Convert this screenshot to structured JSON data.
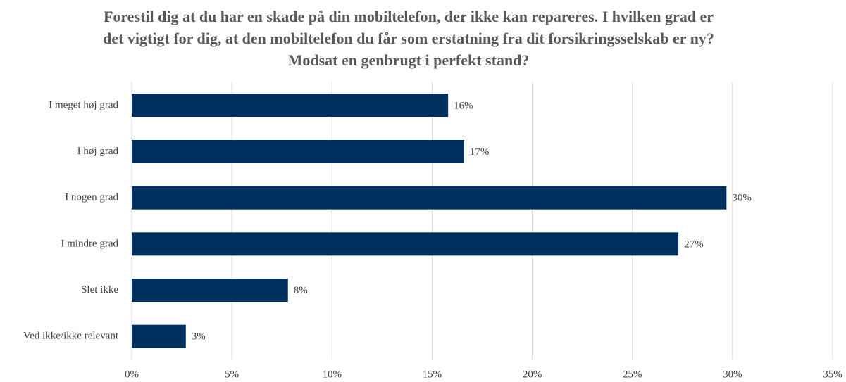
{
  "chart_data": {
    "type": "bar",
    "orientation": "horizontal",
    "title": "Forestil dig at du har en skade på din mobiltelefon, der ikke kan repareres. I hvilken grad er det vigtigt for dig, at den mobiltelefon du får som erstatning fra dit forsikringsselskab er ny? Modsat en genbrugt i perfekt stand?",
    "categories": [
      "I meget høj grad",
      "I høj grad",
      "I nogen grad",
      "I mindre grad",
      "Slet ikke",
      "Ved ikke/ikke relevant"
    ],
    "values": [
      15.8,
      16.6,
      29.7,
      27.3,
      7.8,
      2.7
    ],
    "value_labels": [
      "16%",
      "17%",
      "30%",
      "27%",
      "8%",
      "3%"
    ],
    "color": "#00305e",
    "xlim": [
      0,
      35
    ],
    "xticks": [
      {
        "value": 0,
        "label": "0%"
      },
      {
        "value": 5,
        "label": "5%"
      },
      {
        "value": 10,
        "label": "10%"
      },
      {
        "value": 15,
        "label": "15%"
      },
      {
        "value": 20,
        "label": "20%"
      },
      {
        "value": 25,
        "label": "25%"
      },
      {
        "value": 30,
        "label": "30%"
      },
      {
        "value": 35,
        "label": "35%"
      }
    ],
    "grid": true
  }
}
